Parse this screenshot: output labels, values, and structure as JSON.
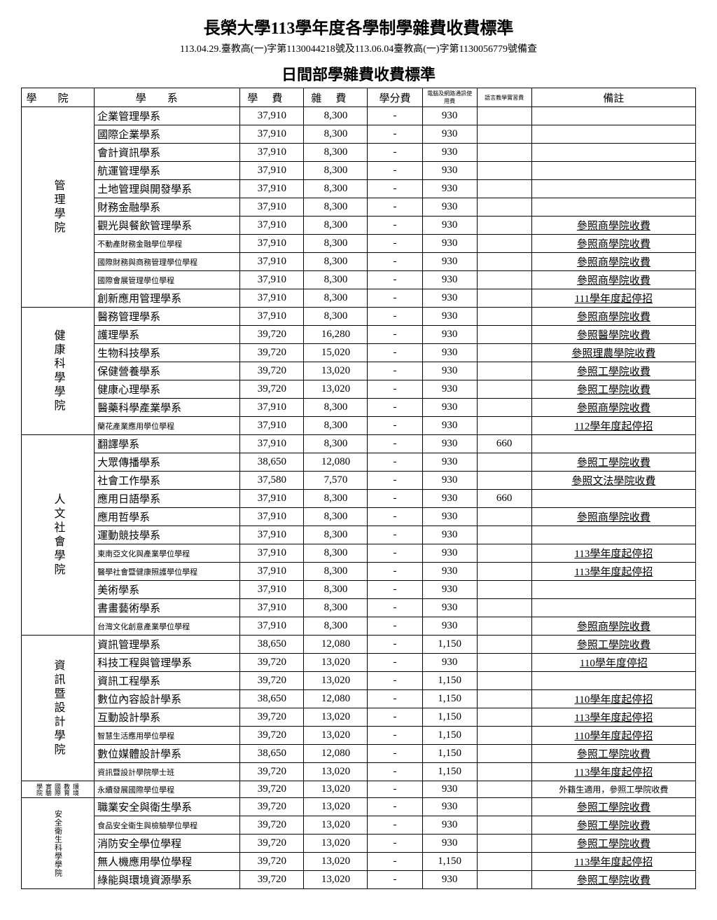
{
  "title": "長榮大學113學年度各學制學雜費收費標準",
  "subtitle": "113.04.29.臺教高(一)字第1130044218號及113.06.04臺教高(一)字第1130056779號備查",
  "section_title": "日間部學雜費收費標準",
  "headers": {
    "college": "學院",
    "dept": "學系",
    "fee1": "學費",
    "fee2": "雜費",
    "fee3": "學分費",
    "fee4": "電腦及網路通訊使用費",
    "fee5": "語言教學實習費",
    "note": "備註"
  },
  "colleges": [
    {
      "name": "管理學院",
      "css": "college-cell",
      "rows": [
        {
          "dept": "企業管理學系",
          "f1": "37,910",
          "f2": "8,300",
          "f3": "-",
          "f4": "930",
          "f5": "",
          "note": "",
          "small": false
        },
        {
          "dept": "國際企業學系",
          "f1": "37,910",
          "f2": "8,300",
          "f3": "-",
          "f4": "930",
          "f5": "",
          "note": "",
          "small": false
        },
        {
          "dept": "會計資訊學系",
          "f1": "37,910",
          "f2": "8,300",
          "f3": "-",
          "f4": "930",
          "f5": "",
          "note": "",
          "small": false
        },
        {
          "dept": "航運管理學系",
          "f1": "37,910",
          "f2": "8,300",
          "f3": "-",
          "f4": "930",
          "f5": "",
          "note": "",
          "small": false
        },
        {
          "dept": "土地管理與開發學系",
          "f1": "37,910",
          "f2": "8,300",
          "f3": "-",
          "f4": "930",
          "f5": "",
          "note": "",
          "small": false
        },
        {
          "dept": "財務金融學系",
          "f1": "37,910",
          "f2": "8,300",
          "f3": "-",
          "f4": "930",
          "f5": "",
          "note": "",
          "small": false
        },
        {
          "dept": "觀光與餐飲管理學系",
          "f1": "37,910",
          "f2": "8,300",
          "f3": "-",
          "f4": "930",
          "f5": "",
          "note": "參照商學院收費",
          "small": false
        },
        {
          "dept": "不動產財務金融學位學程",
          "f1": "37,910",
          "f2": "8,300",
          "f3": "-",
          "f4": "930",
          "f5": "",
          "note": "參照商學院收費",
          "small": true
        },
        {
          "dept": "國際財務與商務管理學位學程",
          "f1": "37,910",
          "f2": "8,300",
          "f3": "-",
          "f4": "930",
          "f5": "",
          "note": "參照商學院收費",
          "small": true
        },
        {
          "dept": "國際會展管理學位學程",
          "f1": "37,910",
          "f2": "8,300",
          "f3": "-",
          "f4": "930",
          "f5": "",
          "note": "參照商學院收費",
          "small": true
        },
        {
          "dept": "創新應用管理學系",
          "f1": "37,910",
          "f2": "8,300",
          "f3": "-",
          "f4": "930",
          "f5": "",
          "note": "111學年度起停招",
          "small": false
        }
      ]
    },
    {
      "name": "健康科學學院",
      "css": "college-cell",
      "rows": [
        {
          "dept": "醫務管理學系",
          "f1": "37,910",
          "f2": "8,300",
          "f3": "-",
          "f4": "930",
          "f5": "",
          "note": "參照商學院收費",
          "small": false
        },
        {
          "dept": "護理學系",
          "f1": "39,720",
          "f2": "16,280",
          "f3": "-",
          "f4": "930",
          "f5": "",
          "note": "參照醫學院收費",
          "small": false
        },
        {
          "dept": "生物科技學系",
          "f1": "39,720",
          "f2": "15,020",
          "f3": "-",
          "f4": "930",
          "f5": "",
          "note": "參照理農學院收費",
          "small": false
        },
        {
          "dept": "保健營養學系",
          "f1": "39,720",
          "f2": "13,020",
          "f3": "-",
          "f4": "930",
          "f5": "",
          "note": "參照工學院收費",
          "small": false
        },
        {
          "dept": "健康心理學系",
          "f1": "39,720",
          "f2": "13,020",
          "f3": "-",
          "f4": "930",
          "f5": "",
          "note": "參照工學院收費",
          "small": false
        },
        {
          "dept": "醫藥科學產業學系",
          "f1": "37,910",
          "f2": "8,300",
          "f3": "-",
          "f4": "930",
          "f5": "",
          "note": "參照商學院收費",
          "small": false
        },
        {
          "dept": "蘭花產業應用學位學程",
          "f1": "37,910",
          "f2": "8,300",
          "f3": "-",
          "f4": "930",
          "f5": "",
          "note": "112學年度起停招",
          "small": true
        }
      ]
    },
    {
      "name": "人文社會學院",
      "css": "college-cell",
      "rows": [
        {
          "dept": "翻譯學系",
          "f1": "37,910",
          "f2": "8,300",
          "f3": "-",
          "f4": "930",
          "f5": "660",
          "note": "",
          "small": false
        },
        {
          "dept": "大眾傳播學系",
          "f1": "38,650",
          "f2": "12,080",
          "f3": "-",
          "f4": "930",
          "f5": "",
          "note": "參照工學院收費",
          "small": false
        },
        {
          "dept": "社會工作學系",
          "f1": "37,580",
          "f2": "7,570",
          "f3": "-",
          "f4": "930",
          "f5": "",
          "note": "參照文法學院收費",
          "small": false
        },
        {
          "dept": "應用日語學系",
          "f1": "37,910",
          "f2": "8,300",
          "f3": "-",
          "f4": "930",
          "f5": "660",
          "note": "",
          "small": false
        },
        {
          "dept": "應用哲學系",
          "f1": "37,910",
          "f2": "8,300",
          "f3": "-",
          "f4": "930",
          "f5": "",
          "note": "參照商學院收費",
          "small": false
        },
        {
          "dept": "運動競技學系",
          "f1": "37,910",
          "f2": "8,300",
          "f3": "-",
          "f4": "930",
          "f5": "",
          "note": "",
          "small": false
        },
        {
          "dept": "東南亞文化與產業學位學程",
          "f1": "37,910",
          "f2": "8,300",
          "f3": "-",
          "f4": "930",
          "f5": "",
          "note": "113學年度起停招",
          "small": true
        },
        {
          "dept": "醫學社會暨健康照護學位學程",
          "f1": "37,910",
          "f2": "8,300",
          "f3": "-",
          "f4": "930",
          "f5": "",
          "note": "113學年度起停招",
          "small": true
        },
        {
          "dept": "美術學系",
          "f1": "37,910",
          "f2": "8,300",
          "f3": "-",
          "f4": "930",
          "f5": "",
          "note": "",
          "small": false
        },
        {
          "dept": "書畫藝術學系",
          "f1": "37,910",
          "f2": "8,300",
          "f3": "-",
          "f4": "930",
          "f5": "",
          "note": "",
          "small": false
        },
        {
          "dept": "台灣文化創意產業學位學程",
          "f1": "37,910",
          "f2": "8,300",
          "f3": "-",
          "f4": "930",
          "f5": "",
          "note": "參照商學院收費",
          "small": true
        }
      ]
    },
    {
      "name": "資訊暨設計學院",
      "css": "college-cell",
      "rows": [
        {
          "dept": "資訊管理學系",
          "f1": "38,650",
          "f2": "12,080",
          "f3": "-",
          "f4": "1,150",
          "f5": "",
          "note": "參照工學院收費",
          "small": false
        },
        {
          "dept": "科技工程與管理學系",
          "f1": "39,720",
          "f2": "13,020",
          "f3": "-",
          "f4": "930",
          "f5": "",
          "note": "110學年度停招",
          "small": false
        },
        {
          "dept": "資訊工程學系",
          "f1": "39,720",
          "f2": "13,020",
          "f3": "-",
          "f4": "1,150",
          "f5": "",
          "note": "",
          "small": false
        },
        {
          "dept": "數位內容設計學系",
          "f1": "38,650",
          "f2": "12,080",
          "f3": "-",
          "f4": "1,150",
          "f5": "",
          "note": "110學年度起停招",
          "small": false
        },
        {
          "dept": "互動設計學系",
          "f1": "39,720",
          "f2": "13,020",
          "f3": "-",
          "f4": "1,150",
          "f5": "",
          "note": "113學年度起停招",
          "small": false
        },
        {
          "dept": "智慧生活應用學位學程",
          "f1": "39,720",
          "f2": "13,020",
          "f3": "-",
          "f4": "1,150",
          "f5": "",
          "note": "110學年度起停招",
          "small": true
        },
        {
          "dept": "數位媒體設計學系",
          "f1": "38,650",
          "f2": "12,080",
          "f3": "-",
          "f4": "1,150",
          "f5": "",
          "note": "參照工學院收費",
          "small": false
        },
        {
          "dept": "資訊暨設計學院學士班",
          "f1": "39,720",
          "f2": "13,020",
          "f3": "-",
          "f4": "1,150",
          "f5": "",
          "note": "113學年度起停招",
          "small": true
        }
      ]
    },
    {
      "name": "環境教育國際實驗學院",
      "css": "college-cell-small",
      "rows": [
        {
          "dept": "永續發展國際學位學程",
          "f1": "39,720",
          "f2": "13,020",
          "f3": "-",
          "f4": "930",
          "f5": "",
          "note": "外籍生適用，參照工學院收費",
          "small": true,
          "noteplain": true
        }
      ]
    },
    {
      "name": "安全衛生科學學院",
      "css": "college-cell-mid",
      "rows": [
        {
          "dept": "職業安全與衛生學系",
          "f1": "39,720",
          "f2": "13,020",
          "f3": "-",
          "f4": "930",
          "f5": "",
          "note": "參照工學院收費",
          "small": false
        },
        {
          "dept": "食品安全衛生與檢驗學位學程",
          "f1": "39,720",
          "f2": "13,020",
          "f3": "-",
          "f4": "930",
          "f5": "",
          "note": "參照工學院收費",
          "small": true
        },
        {
          "dept": "消防安全學位學程",
          "f1": "39,720",
          "f2": "13,020",
          "f3": "-",
          "f4": "930",
          "f5": "",
          "note": "參照工學院收費",
          "small": false
        },
        {
          "dept": "無人機應用學位學程",
          "f1": "39,720",
          "f2": "13,020",
          "f3": "-",
          "f4": "1,150",
          "f5": "",
          "note": "113學年度起停招",
          "small": false
        },
        {
          "dept": "綠能與環境資源學系",
          "f1": "39,720",
          "f2": "13,020",
          "f3": "-",
          "f4": "930",
          "f5": "",
          "note": "參照工學院收費",
          "small": false
        }
      ]
    }
  ]
}
